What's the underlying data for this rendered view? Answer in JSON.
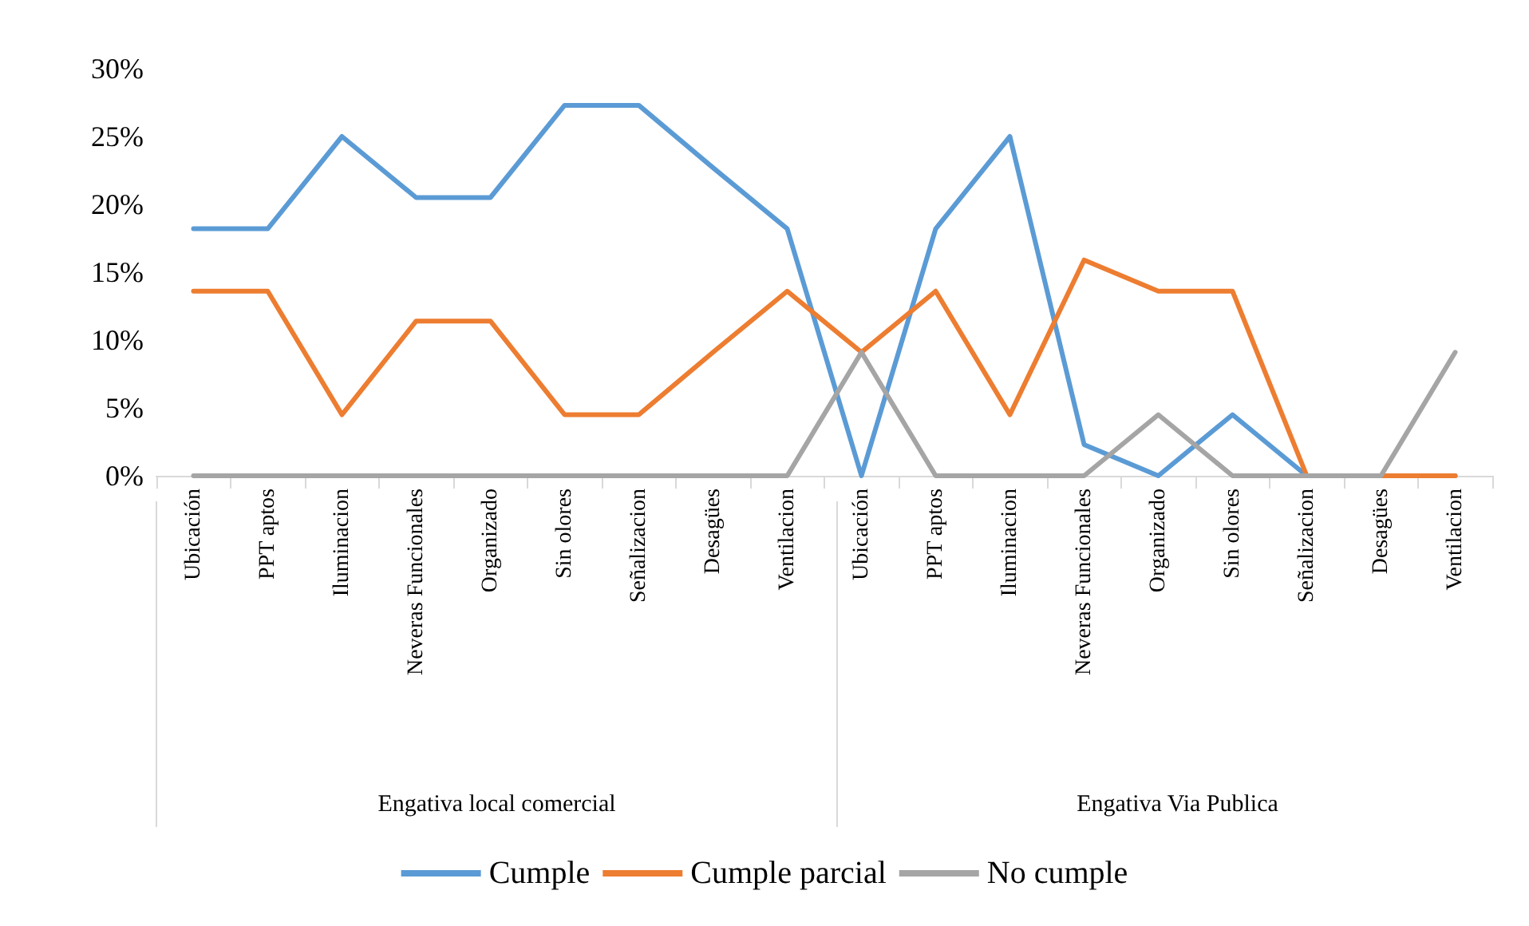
{
  "chart_data": {
    "type": "line",
    "categories": [
      "Ubicación",
      "PPT aptos",
      "Iluminacion",
      "Neveras Funcionales",
      "Organizado",
      "Sin olores",
      "Señalizacion",
      "Desagües",
      "Ventilacion",
      "Ubicación",
      "PPT aptos",
      "Iluminacion",
      "Neveras Funcionales",
      "Organizado",
      "Sin olores",
      "Señalizacion",
      "Desagües",
      "Ventilacion"
    ],
    "series": [
      {
        "name": "Cumple",
        "color": "#5b9bd5",
        "values": [
          18.2,
          18.2,
          25,
          20.5,
          20.5,
          27.3,
          27.3,
          22.7,
          18.2,
          0,
          18.2,
          25,
          2.3,
          0,
          4.5,
          0,
          0,
          0
        ]
      },
      {
        "name": "Cumple parcial",
        "color": "#ed7d31",
        "values": [
          13.6,
          13.6,
          4.5,
          11.4,
          11.4,
          4.5,
          4.5,
          9.1,
          13.6,
          9.1,
          13.6,
          4.5,
          15.9,
          13.6,
          13.6,
          0,
          0,
          0
        ]
      },
      {
        "name": "No cumple",
        "color": "#a5a5a5",
        "values": [
          0,
          0,
          0,
          0,
          0,
          0,
          0,
          0,
          0,
          9.1,
          0,
          0,
          0,
          4.5,
          0,
          0,
          0,
          9.1
        ]
      }
    ],
    "ylim": [
      0,
      30
    ],
    "yticks": [
      {
        "value": 0,
        "label": "0%"
      },
      {
        "value": 5,
        "label": "5%"
      },
      {
        "value": 10,
        "label": "10%"
      },
      {
        "value": 15,
        "label": "15%"
      },
      {
        "value": 20,
        "label": "20%"
      },
      {
        "value": 25,
        "label": "25%"
      },
      {
        "value": 30,
        "label": "30%"
      }
    ],
    "annotations": [
      "Engativa local comercial",
      "Engativa Via Publica"
    ],
    "legend": "bottom",
    "marker": "none",
    "line_style": "solid"
  }
}
